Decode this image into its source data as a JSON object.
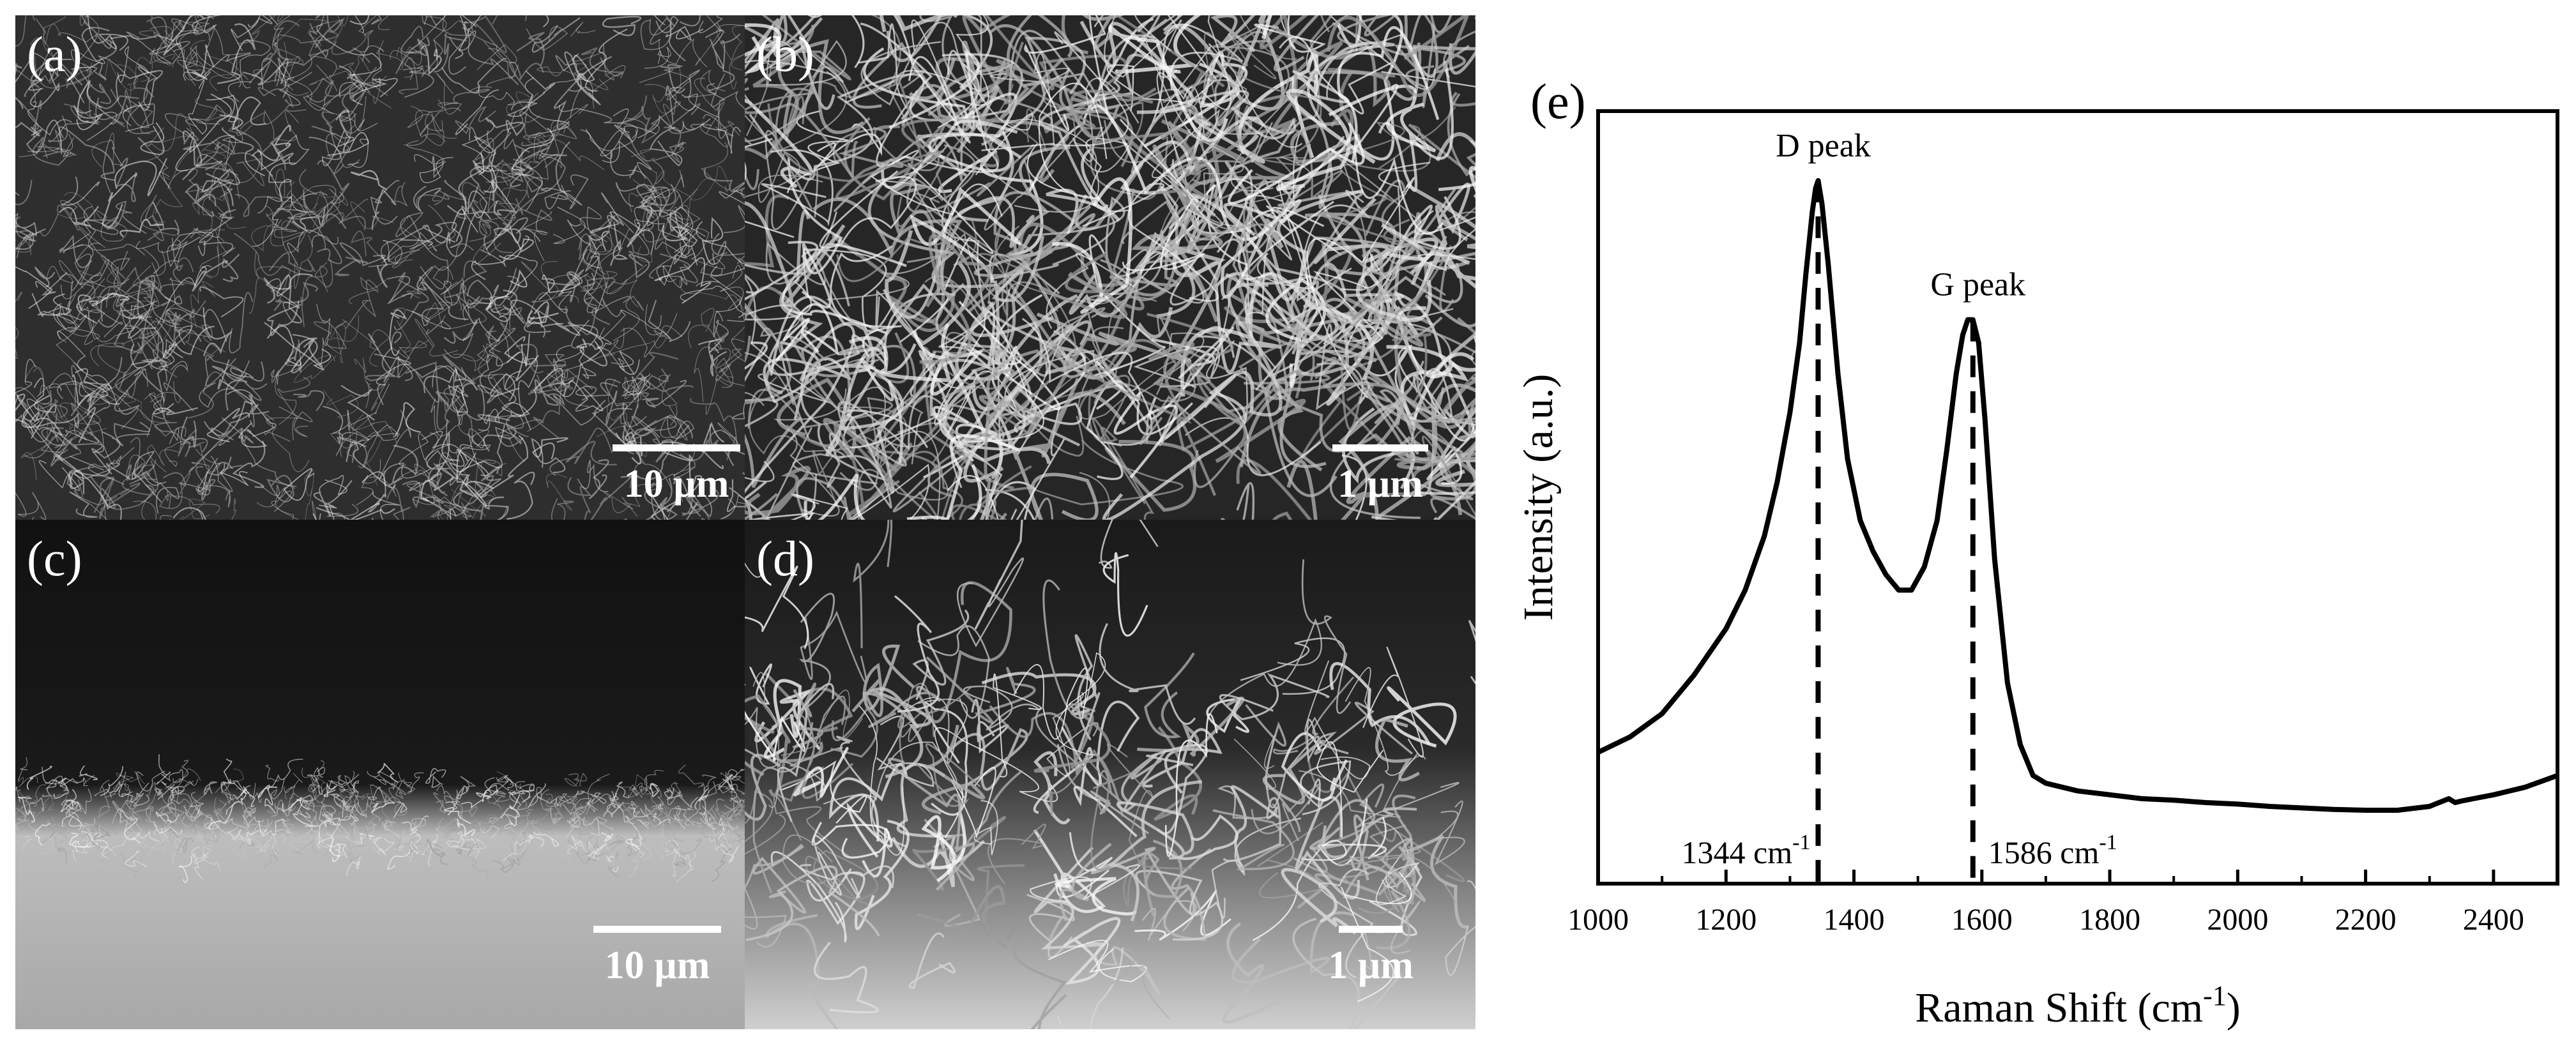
{
  "panels": {
    "a": {
      "label": "(a)",
      "scale": "10 µm"
    },
    "b": {
      "label": "(b)",
      "scale": "1 µm"
    },
    "c": {
      "label": "(c)",
      "scale": "10 µm"
    },
    "d": {
      "label": "(d)",
      "scale": "1 µm"
    }
  },
  "chart_data": {
    "type": "line",
    "panel_label": "(e)",
    "xlabel": "Raman Shift (cm",
    "xlabel_sup": "-1",
    "xlabel_suffix": ")",
    "ylabel": "Intensity (a.u.)",
    "xlim": [
      1000,
      2500
    ],
    "ylim": [
      0,
      1
    ],
    "x_ticks": [
      1000,
      1200,
      1400,
      1600,
      1800,
      2000,
      2200,
      2400
    ],
    "y_tick_labels": false,
    "grid": false,
    "annotations": [
      {
        "text": "D peak",
        "x": 1344
      },
      {
        "text": "G peak",
        "x": 1586
      }
    ],
    "marker_lines": [
      {
        "x": 1344,
        "label": "1344 cm",
        "sup": "-1"
      },
      {
        "x": 1586,
        "label": "1586 cm",
        "sup": "-1"
      }
    ],
    "series": [
      {
        "x": [
          1000,
          1050,
          1100,
          1150,
          1200,
          1230,
          1260,
          1280,
          1300,
          1315,
          1325,
          1335,
          1340,
          1344,
          1350,
          1360,
          1375,
          1390,
          1410,
          1430,
          1450,
          1470,
          1490,
          1510,
          1530,
          1545,
          1560,
          1570,
          1578,
          1586,
          1595,
          1605,
          1620,
          1640,
          1660,
          1680,
          1700,
          1750,
          1800,
          1850,
          1900,
          1950,
          2000,
          2050,
          2100,
          2150,
          2200,
          2250,
          2300,
          2330,
          2340,
          2350,
          2400,
          2450,
          2500
        ],
        "y": [
          0.17,
          0.19,
          0.22,
          0.27,
          0.33,
          0.38,
          0.45,
          0.52,
          0.61,
          0.7,
          0.79,
          0.87,
          0.9,
          0.91,
          0.88,
          0.8,
          0.66,
          0.55,
          0.47,
          0.43,
          0.4,
          0.38,
          0.38,
          0.41,
          0.47,
          0.56,
          0.66,
          0.71,
          0.73,
          0.73,
          0.7,
          0.6,
          0.42,
          0.26,
          0.18,
          0.14,
          0.13,
          0.12,
          0.115,
          0.11,
          0.108,
          0.105,
          0.103,
          0.1,
          0.098,
          0.096,
          0.095,
          0.095,
          0.1,
          0.11,
          0.105,
          0.107,
          0.115,
          0.125,
          0.14
        ]
      }
    ]
  }
}
